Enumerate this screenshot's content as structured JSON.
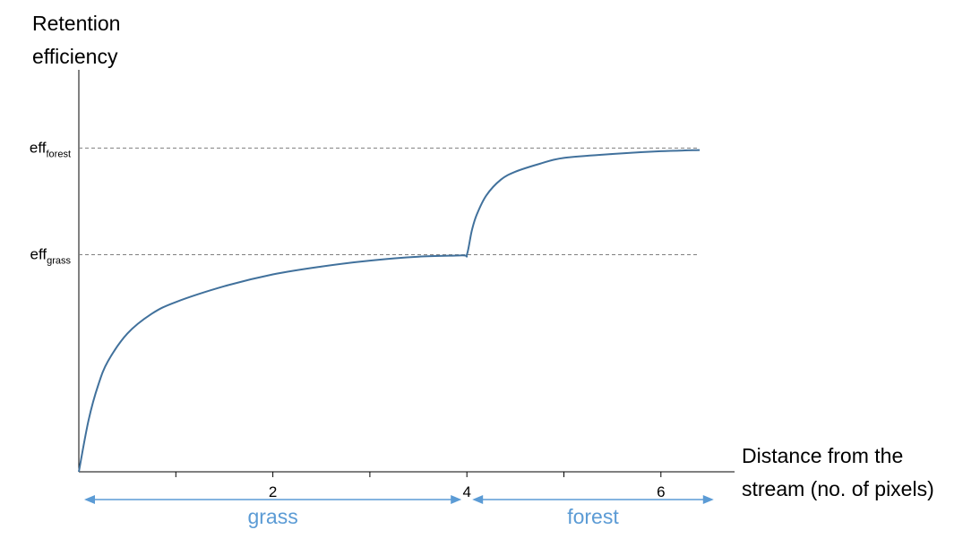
{
  "chart_data": {
    "type": "line",
    "title": "",
    "ylabel": [
      "Retention",
      "efficiency"
    ],
    "xlabel": [
      "Distance from the",
      "stream (no. of pixels)"
    ],
    "xlim": [
      0,
      6.6
    ],
    "ylim": [
      0,
      1.0
    ],
    "x_ticks": [
      1,
      2,
      3,
      4,
      5,
      6
    ],
    "x_tick_labels": [
      "",
      "2",
      "",
      "4",
      "",
      "6"
    ],
    "reference_lines": [
      {
        "label_main": "eff",
        "label_sub": "forest",
        "y": 0.82
      },
      {
        "label_main": "eff",
        "label_sub": "grass",
        "y": 0.55
      }
    ],
    "series": [
      {
        "color": "#41719c",
        "x": [
          0,
          0.1,
          0.2,
          0.3,
          0.5,
          0.75,
          1.0,
          1.5,
          2.0,
          2.5,
          3.0,
          3.5,
          3.95,
          4.0,
          4.05,
          4.1,
          4.2,
          4.35,
          4.5,
          4.75,
          5.0,
          5.5,
          6.0,
          6.4
        ],
        "y": [
          0,
          0.13,
          0.22,
          0.28,
          0.35,
          0.4,
          0.43,
          0.47,
          0.5,
          0.52,
          0.535,
          0.545,
          0.548,
          0.55,
          0.61,
          0.65,
          0.7,
          0.74,
          0.76,
          0.78,
          0.795,
          0.805,
          0.812,
          0.815
        ]
      }
    ],
    "regions": [
      {
        "label": "grass",
        "x_start": 0,
        "x_end": 4,
        "color": "#5b9bd5"
      },
      {
        "label": "forest",
        "x_start": 4,
        "x_end": 6.6,
        "color": "#5b9bd5"
      }
    ]
  }
}
